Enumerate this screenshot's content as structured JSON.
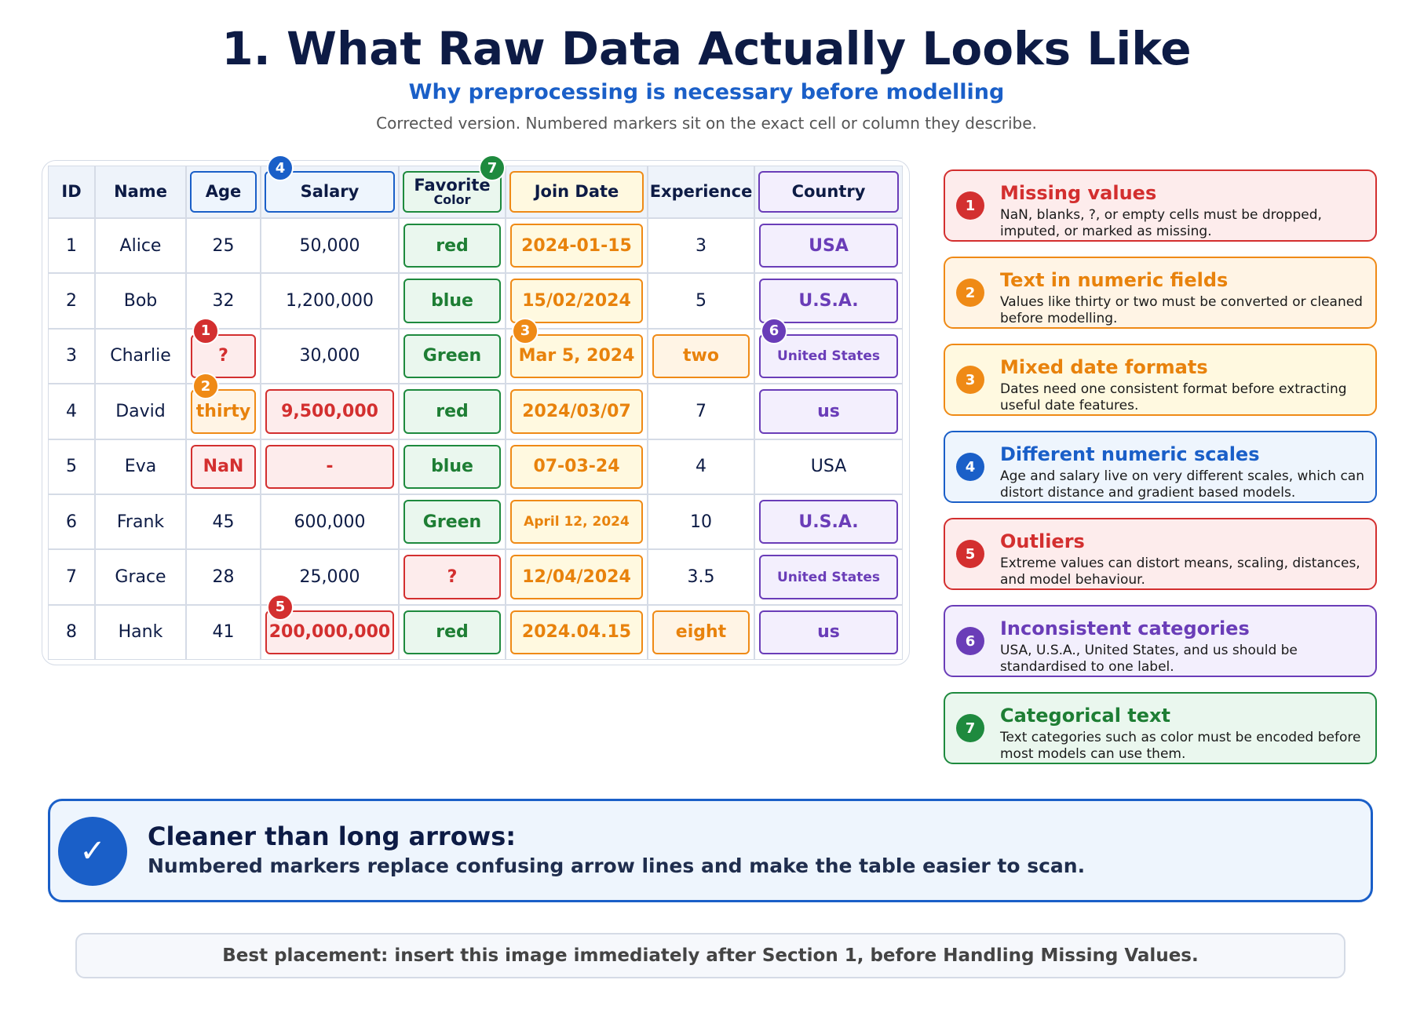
{
  "header": {
    "title": "1. What Raw Data Actually Looks Like",
    "subtitle": "Why preprocessing is necessary before modelling",
    "note": "Corrected version. Numbered markers sit on the exact cell or column they describe."
  },
  "table": {
    "columns": [
      {
        "label": "ID"
      },
      {
        "label": "Name"
      },
      {
        "label": "Age"
      },
      {
        "label": "Salary"
      },
      {
        "label": "Favorite",
        "sub": "Color"
      },
      {
        "label": "Join Date"
      },
      {
        "label": "Experience"
      },
      {
        "label": "Country"
      }
    ],
    "rows": [
      [
        "1",
        "Alice",
        "25",
        "50,000",
        "red",
        "2024-01-15",
        "3",
        "USA"
      ],
      [
        "2",
        "Bob",
        "32",
        "1,200,000",
        "blue",
        "15/02/2024",
        "5",
        "U.S.A."
      ],
      [
        "3",
        "Charlie",
        "?",
        "30,000",
        "Green",
        "Mar 5, 2024",
        "two",
        "United States"
      ],
      [
        "4",
        "David",
        "thirty",
        "9,500,000",
        "red",
        "2024/03/07",
        "7",
        "us"
      ],
      [
        "5",
        "Eva",
        "NaN",
        "-",
        "blue",
        "07-03-24",
        "4",
        "USA"
      ],
      [
        "6",
        "Frank",
        "45",
        "600,000",
        "Green",
        "April 12, 2024",
        "10",
        "U.S.A."
      ],
      [
        "7",
        "Grace",
        "28",
        "25,000",
        "?",
        "12/04/2024",
        "3.5",
        "United States"
      ],
      [
        "8",
        "Hank",
        "41",
        "200,000,000",
        "red",
        "2024.04.15",
        "eight",
        "us"
      ]
    ],
    "markers": [
      "1",
      "2",
      "3",
      "4",
      "5",
      "6",
      "7"
    ]
  },
  "legend": [
    {
      "number": "1",
      "title": "Missing values",
      "text": "NaN, blanks, ?, or empty cells must be dropped, imputed, or marked as missing."
    },
    {
      "number": "2",
      "title": "Text in numeric fields",
      "text": "Values like thirty or two must be converted or cleaned before modelling."
    },
    {
      "number": "3",
      "title": "Mixed date formats",
      "text": "Dates need one consistent format before extracting useful date features."
    },
    {
      "number": "4",
      "title": "Different numeric scales",
      "text": "Age and salary live on very different scales, which can distort distance and gradient based models."
    },
    {
      "number": "5",
      "title": "Outliers",
      "text": "Extreme values can distort means, scaling, distances, and model behaviour."
    },
    {
      "number": "6",
      "title": "Inconsistent categories",
      "text": "USA, U.S.A., United States, and us should be standardised to one label."
    },
    {
      "number": "7",
      "title": "Categorical text",
      "text": "Text categories such as color must be encoded before most models can use them."
    }
  ],
  "callout": {
    "icon": "✓",
    "title": "Cleaner than long arrows:",
    "text": "Numbered markers replace confusing arrow lines and make the table easier to scan."
  },
  "footer": "Best placement: insert this image immediately after Section 1, before Handling Missing Values."
}
